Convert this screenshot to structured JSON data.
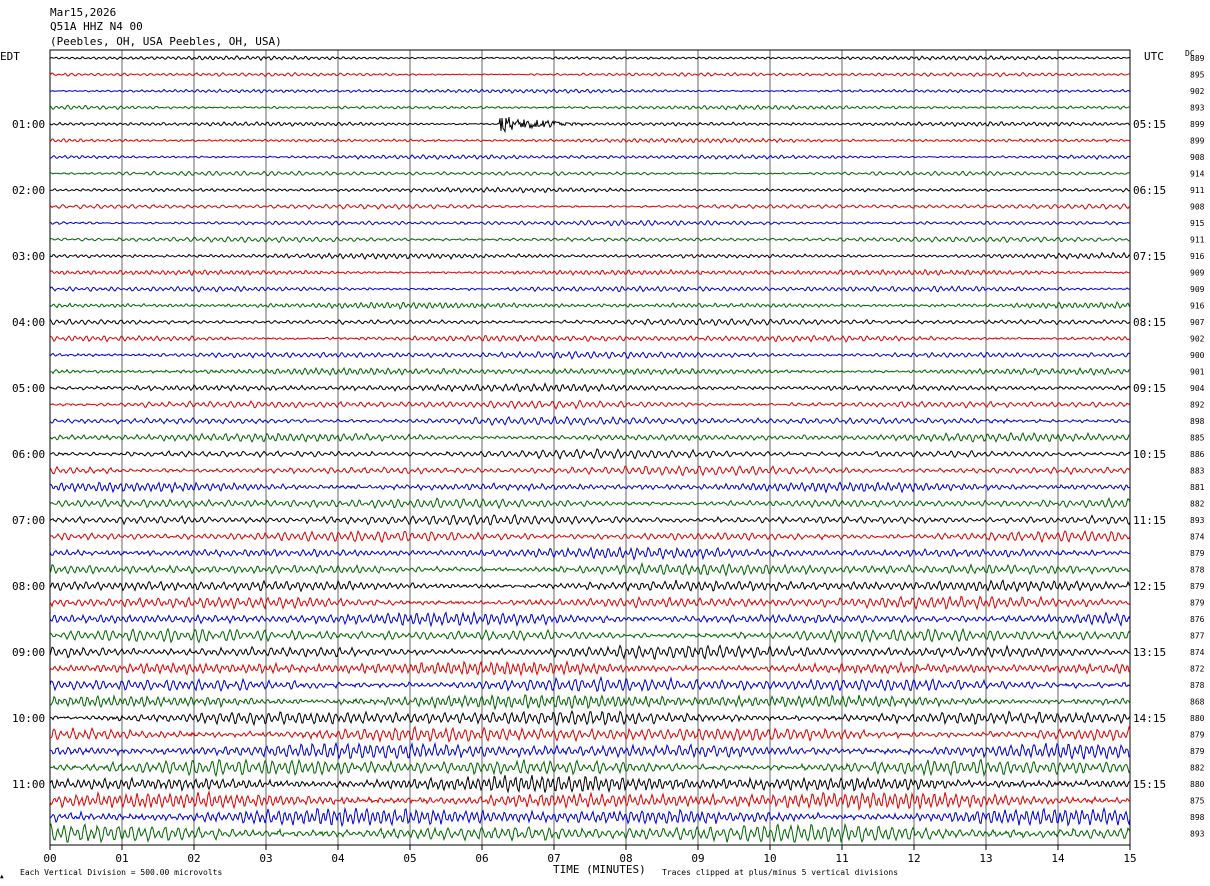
{
  "header": {
    "date": "Mar15,2026",
    "station": "Q51A HHZ N4 00",
    "location": "(Peebles, OH, USA Peebles, OH, USA)"
  },
  "left_label": "EDT",
  "right_label": "UTC",
  "dc_label": "DC",
  "chart_data": {
    "type": "line",
    "title": "",
    "xlabel": "TIME (MINUTES)",
    "xlim": [
      0,
      15
    ],
    "x_ticks": [
      "00",
      "01",
      "02",
      "03",
      "04",
      "05",
      "06",
      "07",
      "08",
      "09",
      "10",
      "11",
      "12",
      "13",
      "14",
      "15"
    ],
    "trace_colors": [
      "#000000",
      "#dd0000",
      "#0000cc",
      "#006600"
    ],
    "left_time_labels": [
      "01:00",
      "02:00",
      "03:00",
      "04:00",
      "05:00",
      "06:00",
      "07:00",
      "08:00",
      "09:00",
      "10:00",
      "11:00"
    ],
    "right_time_labels": [
      "05:15",
      "06:15",
      "07:15",
      "08:15",
      "09:15",
      "10:15",
      "11:15",
      "12:15",
      "13:15",
      "14:15",
      "15:15"
    ],
    "dc_offsets": [
      "889",
      "895",
      "902",
      "893",
      "899",
      "899",
      "908",
      "914",
      "911",
      "908",
      "915",
      "911",
      "916",
      "909",
      "909",
      "916",
      "907",
      "902",
      "900",
      "901",
      "904",
      "892",
      "898",
      "885",
      "886",
      "883",
      "881",
      "882",
      "893",
      "874",
      "879",
      "878",
      "879",
      "879",
      "876",
      "877",
      "874",
      "872",
      "878",
      "868",
      "880",
      "879",
      "879",
      "882",
      "880",
      "875",
      "898",
      "893"
    ],
    "event": {
      "row": 4,
      "start_minute": 6.25,
      "end_minute": 7.7
    },
    "footer_left": "Each Vertical Division =  500.00 microvolts",
    "footer_right": "Traces clipped at plus/minus 5 vertical divisions"
  }
}
